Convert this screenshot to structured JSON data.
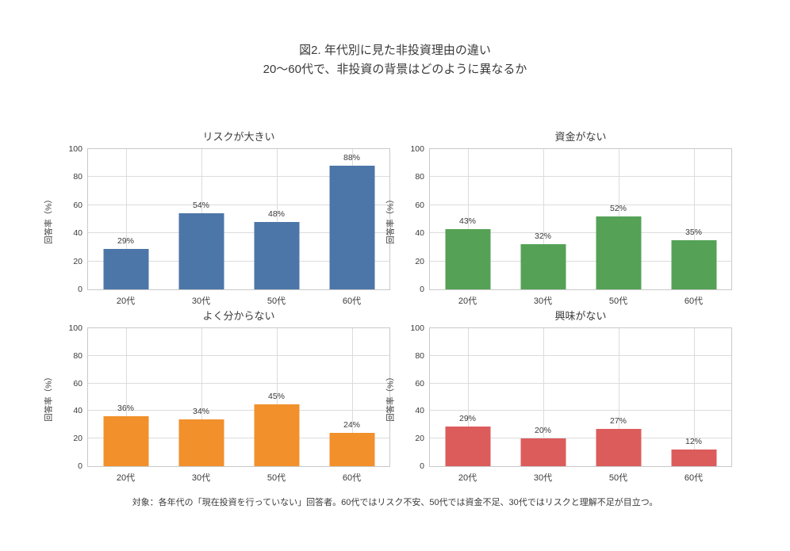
{
  "figure": {
    "title": "図2. 年代別に見た非投資理由の違い",
    "subtitle": "20〜60代で、非投資の背景はどのように異なるか",
    "footnote": "対象：各年代の「現在投資を行っていない」回答者。60代ではリスク不安、50代では資金不足、30代ではリスクと理解不足が目立つ。"
  },
  "chart_data": [
    {
      "type": "bar",
      "title": "リスクが大きい",
      "categories": [
        "20代",
        "30代",
        "50代",
        "60代"
      ],
      "values": [
        29,
        54,
        48,
        88
      ],
      "bar_labels": [
        "29%",
        "54%",
        "48%",
        "88%"
      ],
      "color": "#4d76a8",
      "xlabel": "",
      "ylabel": "回答率（%）",
      "ylim": [
        0,
        100
      ],
      "yticks": [
        0,
        20,
        40,
        60,
        80,
        100
      ],
      "grid": true,
      "legend": "none"
    },
    {
      "type": "bar",
      "title": "資金がない",
      "categories": [
        "20代",
        "30代",
        "50代",
        "60代"
      ],
      "values": [
        43,
        32,
        52,
        35
      ],
      "bar_labels": [
        "43%",
        "32%",
        "52%",
        "35%"
      ],
      "color": "#55a256",
      "xlabel": "",
      "ylabel": "回答率（%）",
      "ylim": [
        0,
        100
      ],
      "yticks": [
        0,
        20,
        40,
        60,
        80,
        100
      ],
      "grid": true,
      "legend": "none"
    },
    {
      "type": "bar",
      "title": "よく分からない",
      "categories": [
        "20代",
        "30代",
        "50代",
        "60代"
      ],
      "values": [
        36,
        34,
        45,
        24
      ],
      "bar_labels": [
        "36%",
        "34%",
        "45%",
        "24%"
      ],
      "color": "#f2902c",
      "xlabel": "",
      "ylabel": "回答率（%）",
      "ylim": [
        0,
        100
      ],
      "yticks": [
        0,
        20,
        40,
        60,
        80,
        100
      ],
      "grid": true,
      "legend": "none"
    },
    {
      "type": "bar",
      "title": "興味がない",
      "categories": [
        "20代",
        "30代",
        "50代",
        "60代"
      ],
      "values": [
        29,
        20,
        27,
        12
      ],
      "bar_labels": [
        "29%",
        "20%",
        "27%",
        "12%"
      ],
      "color": "#dc5c5c",
      "xlabel": "",
      "ylabel": "回答率（%）",
      "ylim": [
        0,
        100
      ],
      "yticks": [
        0,
        20,
        40,
        60,
        80,
        100
      ],
      "grid": true,
      "legend": "none"
    }
  ]
}
